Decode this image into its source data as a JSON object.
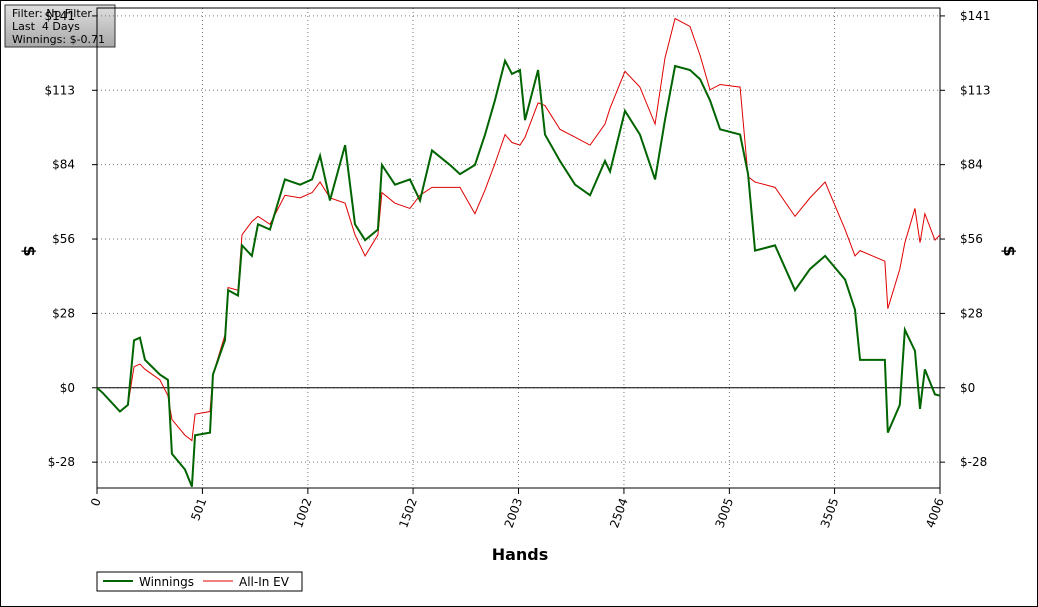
{
  "chart_data": {
    "type": "line",
    "annotations": [
      "Filter: No Filter",
      "Last  4 Days",
      "Winnings: $-0.71"
    ],
    "xlabel": "Hands",
    "ylabel": "$",
    "y2label": "$",
    "grid": true,
    "legend": "bottom-left",
    "xlim": [
      0,
      4006
    ],
    "xticks": [
      0,
      501,
      1002,
      1502,
      2003,
      2504,
      3005,
      3505,
      4006
    ],
    "ylim": [
      -38,
      144
    ],
    "yticks": [
      {
        "value": -28.2,
        "label": "$-28"
      },
      {
        "value": 0,
        "label": "$0"
      },
      {
        "value": 28.2,
        "label": "$28"
      },
      {
        "value": 56.4,
        "label": "$56"
      },
      {
        "value": 84.6,
        "label": "$84"
      },
      {
        "value": 112.8,
        "label": "$113"
      },
      {
        "value": 141,
        "label": "$141"
      }
    ],
    "x": [
      0,
      28,
      109,
      147,
      176,
      204,
      228,
      299,
      337,
      356,
      418,
      451,
      466,
      537,
      551,
      608,
      623,
      670,
      689,
      736,
      765,
      822,
      893,
      965,
      1022,
      1060,
      1107,
      1179,
      1226,
      1274,
      1335,
      1354,
      1416,
      1487,
      1535,
      1592,
      1677,
      1725,
      1796,
      1844,
      1891,
      1939,
      1972,
      2010,
      2034,
      2096,
      2129,
      2200,
      2272,
      2343,
      2414,
      2438,
      2509,
      2580,
      2652,
      2699,
      2747,
      2818,
      2866,
      2913,
      2961,
      3056,
      3094,
      3127,
      3222,
      3317,
      3388,
      3460,
      3555,
      3602,
      3626,
      3744,
      3758,
      3815,
      3839,
      3887,
      3911,
      3934,
      3982,
      4006
    ],
    "series": [
      {
        "name": "Winnings",
        "color": "#006400",
        "width": 2,
        "values": [
          0,
          -2,
          -9,
          -6.5,
          18,
          19,
          10.6,
          5,
          3,
          -25,
          -31,
          -37.5,
          -18,
          -17,
          5,
          18,
          37,
          35,
          54,
          50,
          62,
          60,
          79,
          77,
          79,
          88,
          71,
          92,
          62,
          56,
          60,
          84.5,
          77,
          79,
          71,
          90,
          84.5,
          81,
          84.5,
          96,
          109,
          124,
          119,
          120.5,
          101.5,
          120.5,
          96,
          86,
          77,
          73,
          86,
          82,
          105,
          96,
          79,
          101.5,
          122,
          120.5,
          117,
          109,
          98,
          96,
          81,
          52,
          54,
          37,
          45,
          50,
          41,
          29.6,
          10.6,
          10.6,
          -17,
          -6.5,
          22,
          14,
          -8,
          7,
          -2.5,
          -3
        ]
      },
      {
        "name": "All-In EV",
        "color": "#e00000",
        "width": 1,
        "values": [
          0,
          -2,
          -9,
          -6.5,
          8,
          9,
          7,
          3,
          -3,
          -12,
          -18,
          -20,
          -10,
          -9,
          5,
          20,
          38,
          37,
          58,
          63,
          65,
          62,
          73,
          72,
          74,
          78,
          72,
          70,
          58,
          50,
          58,
          74,
          70,
          68,
          73,
          76,
          76,
          76,
          66,
          75,
          85,
          96,
          93,
          92,
          95,
          108,
          107,
          98,
          95,
          92,
          100,
          106,
          120,
          114,
          100,
          125,
          140,
          137,
          126,
          113,
          115,
          114,
          80,
          78,
          76,
          65,
          72,
          78,
          60,
          50,
          52,
          48,
          30,
          45,
          55,
          68,
          55,
          66,
          56,
          58
        ]
      }
    ]
  }
}
